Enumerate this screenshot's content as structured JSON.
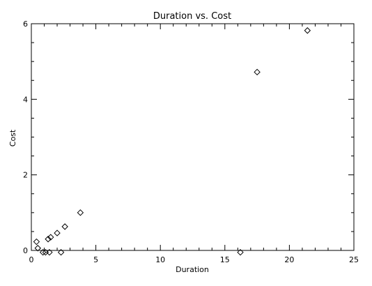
{
  "chart_data": {
    "type": "scatter",
    "title": "Duration vs. Cost",
    "xlabel": "Duration",
    "ylabel": "Cost",
    "xlim": [
      0,
      25
    ],
    "ylim": [
      0,
      6
    ],
    "x_ticks": [
      0,
      5,
      10,
      15,
      20,
      25
    ],
    "y_ticks": [
      0,
      2,
      4,
      6
    ],
    "grid": false,
    "legend": "none",
    "marker": "diamond",
    "marker_color": "#000000",
    "series": [
      {
        "points": [
          {
            "x": 0.4,
            "y": 0.23
          },
          {
            "x": 0.5,
            "y": 0.06
          },
          {
            "x": 0.9,
            "y": -0.05
          },
          {
            "x": 1.1,
            "y": -0.05
          },
          {
            "x": 1.3,
            "y": 0.3
          },
          {
            "x": 1.4,
            "y": -0.05
          },
          {
            "x": 1.5,
            "y": 0.35
          },
          {
            "x": 2.0,
            "y": 0.46
          },
          {
            "x": 2.3,
            "y": -0.05
          },
          {
            "x": 2.6,
            "y": 0.63
          },
          {
            "x": 3.8,
            "y": 1.0
          },
          {
            "x": 16.2,
            "y": -0.05
          },
          {
            "x": 17.5,
            "y": 4.72
          },
          {
            "x": 21.4,
            "y": 5.82
          }
        ]
      }
    ]
  }
}
